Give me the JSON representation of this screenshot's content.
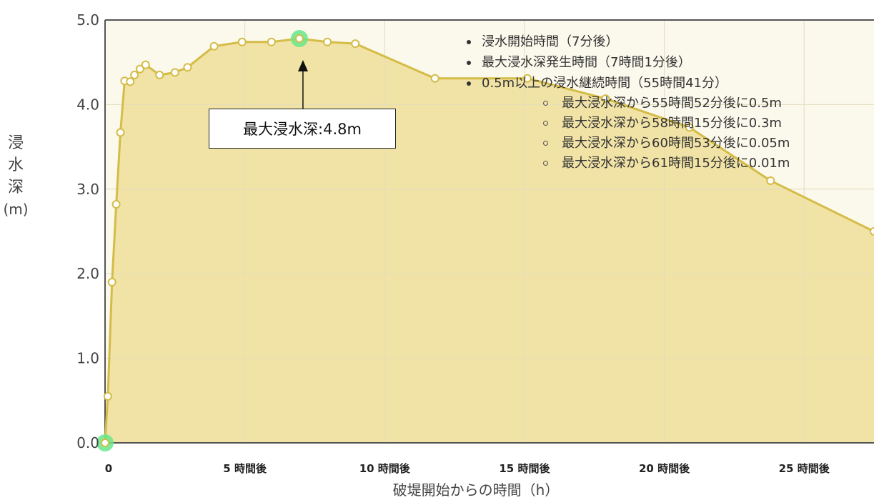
{
  "chart_data": {
    "type": "area",
    "title": "",
    "xlabel": "破堤開始からの時間（h）",
    "ylabel_chars": [
      "浸",
      "水",
      "深"
    ],
    "ylabel_unit": "(m)",
    "xlim": [
      0,
      27.5
    ],
    "ylim": [
      0,
      5.0
    ],
    "xticks": [
      {
        "value": 0,
        "label": "0"
      },
      {
        "value": 5,
        "label": "5 時間後"
      },
      {
        "value": 10,
        "label": "10 時間後"
      },
      {
        "value": 15,
        "label": "15 時間後"
      },
      {
        "value": 20,
        "label": "20 時間後"
      },
      {
        "value": 25,
        "label": "25 時間後"
      }
    ],
    "yticks": [
      {
        "value": 0,
        "label": "0.0"
      },
      {
        "value": 1,
        "label": "1.0"
      },
      {
        "value": 2,
        "label": "2.0"
      },
      {
        "value": 3,
        "label": "3.0"
      },
      {
        "value": 4,
        "label": "4.0"
      },
      {
        "value": 5,
        "label": "5.0"
      }
    ],
    "grid": true,
    "series": [
      {
        "points": [
          [
            0.0,
            0.0
          ],
          [
            0.1,
            0.55
          ],
          [
            0.25,
            1.9
          ],
          [
            0.4,
            2.82
          ],
          [
            0.55,
            3.67
          ],
          [
            0.7,
            4.28
          ],
          [
            0.9,
            4.27
          ],
          [
            1.05,
            4.35
          ],
          [
            1.25,
            4.42
          ],
          [
            1.45,
            4.47
          ],
          [
            1.95,
            4.35
          ],
          [
            2.5,
            4.38
          ],
          [
            2.95,
            4.44
          ],
          [
            3.9,
            4.69
          ],
          [
            4.9,
            4.74
          ],
          [
            5.95,
            4.74
          ],
          [
            6.95,
            4.78
          ],
          [
            7.95,
            4.74
          ],
          [
            8.95,
            4.72
          ],
          [
            11.8,
            4.31
          ],
          [
            15.1,
            4.31
          ],
          [
            17.9,
            4.07
          ],
          [
            20.9,
            3.73
          ],
          [
            23.8,
            3.1
          ],
          [
            27.5,
            2.5
          ]
        ],
        "highlighted": [
          [
            0.0,
            0.0
          ],
          [
            6.95,
            4.78
          ]
        ]
      }
    ],
    "legend": {
      "items": [
        "浸水開始時間（7分後）",
        "最大浸水深発生時間（7時間1分後）",
        "0.5m以上の浸水継続時間（55時間41分）"
      ],
      "subitems": [
        "最大浸水深から55時間52分後に0.5m",
        "最大浸水深から58時間15分後に0.3m",
        "最大浸水深から60時間53分後に0.05m",
        "最大浸水深から61時間15分後に0.01m"
      ]
    },
    "annotation": {
      "text": "最大浸水深:4.8m",
      "target": [
        6.95,
        4.78
      ]
    },
    "colors": {
      "line": "#d4bc47",
      "fill": "#f1e3a6",
      "marker_fill": "#ffffff",
      "highlight": "#67e88a",
      "grid": "#e3dcbd"
    }
  }
}
